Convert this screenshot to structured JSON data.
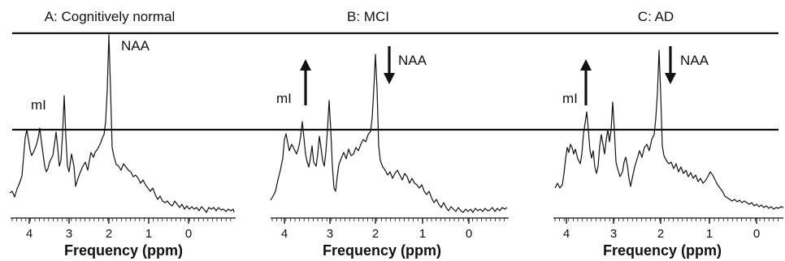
{
  "panels": [
    {
      "title": "A: Cognitively normal",
      "labels": {
        "mi": "mI",
        "naa": "NAA"
      },
      "arrows": {
        "mi": "none",
        "naa": "none"
      },
      "xlabel": "Frequency (ppm)",
      "ticks": [
        "4",
        "3",
        "2",
        "1",
        "0"
      ]
    },
    {
      "title": "B: MCI",
      "labels": {
        "mi": "mI",
        "naa": "NAA"
      },
      "arrows": {
        "mi": "up",
        "naa": "down"
      },
      "xlabel": "Frequency (ppm)",
      "ticks": [
        "4",
        "3",
        "2",
        "1",
        "0"
      ]
    },
    {
      "title": "C: AD",
      "labels": {
        "mi": "mI",
        "naa": "NAA"
      },
      "arrows": {
        "mi": "up",
        "naa": "down"
      },
      "xlabel": "Frequency (ppm)",
      "ticks": [
        "4",
        "3",
        "2",
        "1",
        "0"
      ]
    }
  ],
  "colors": {
    "ink": "#111111",
    "background": "#ffffff"
  }
}
